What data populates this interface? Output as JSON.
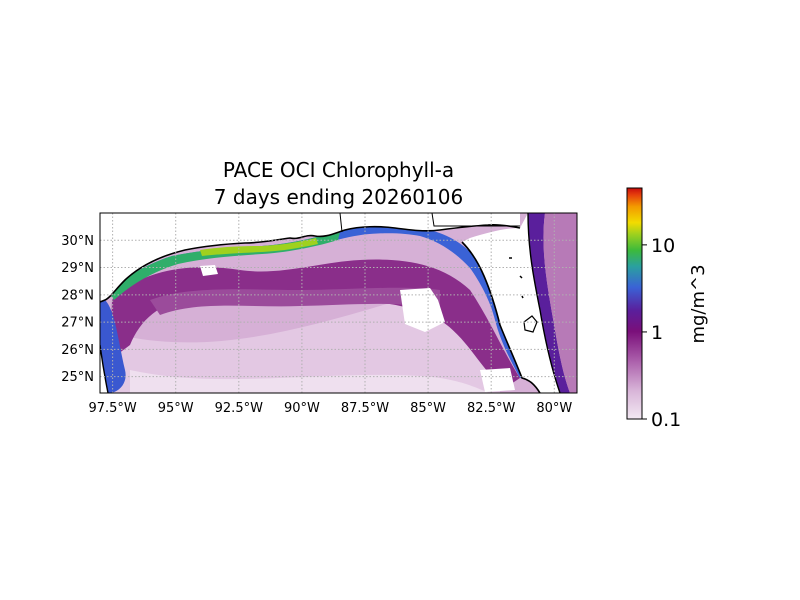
{
  "figure": {
    "title_line1": "PACE OCI Chlorophyll-a",
    "title_line2": "7 days ending 20260106"
  },
  "map": {
    "region": "Gulf of Mexico",
    "lon_range": [
      -98.0,
      -79.1
    ],
    "lat_range": [
      24.4,
      31.0
    ],
    "gridlines": "dotted",
    "lon_tick_labels": [
      "97.5°W",
      "95°W",
      "92.5°W",
      "90°W",
      "87.5°W",
      "85°W",
      "82.5°W",
      "80°W"
    ],
    "lon_ticks": [
      -97.5,
      -95,
      -92.5,
      -90,
      -87.5,
      -85,
      -82.5,
      -80
    ],
    "lat_tick_labels": [
      "25°N",
      "26°N",
      "27°N",
      "28°N",
      "29°N",
      "30°N"
    ],
    "lat_ticks": [
      25,
      26,
      27,
      28,
      29,
      30
    ]
  },
  "colorbar": {
    "label": "mg/m^3",
    "scale": "log",
    "range": [
      0.1,
      45
    ],
    "tick_labels": [
      "0.1",
      "1",
      "10"
    ],
    "ticks": [
      0.1,
      1,
      10
    ],
    "colors": [
      "#f2e8f2",
      "#c9a0c9",
      "#9a4a9a",
      "#7a0f7a",
      "#5a1f9c",
      "#3a58d0",
      "#2b8fd8",
      "#2fae6a",
      "#57c22c",
      "#b7d51a",
      "#f2dc00",
      "#f39a00",
      "#e63b0c",
      "#c80c0c"
    ]
  }
}
